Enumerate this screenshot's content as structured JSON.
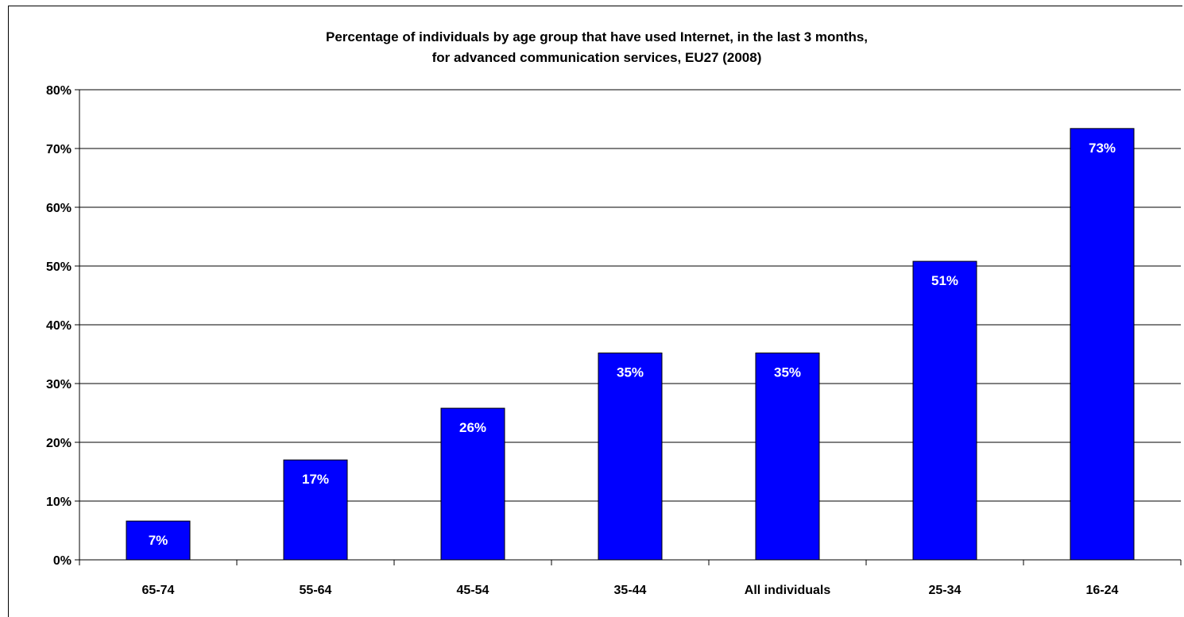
{
  "chart_data": {
    "type": "bar",
    "title": [
      "Percentage of individuals by age group that have used Internet, in the last 3 months,",
      "for advanced communication services, EU27 (2008)"
    ],
    "categories": [
      "65-74",
      "55-64",
      "45-54",
      "35-44",
      "All individuals",
      "25-34",
      "16-24"
    ],
    "values": [
      7,
      17,
      26,
      35,
      35,
      51,
      73
    ],
    "data_labels": [
      "7%",
      "17%",
      "26%",
      "35%",
      "35%",
      "51%",
      "73%"
    ],
    "plotted_values": [
      6.6,
      17.0,
      25.8,
      35.2,
      35.2,
      50.8,
      73.4
    ],
    "yticks": [
      0,
      10,
      20,
      30,
      40,
      50,
      60,
      70,
      80
    ],
    "ytick_labels": [
      "0%",
      "10%",
      "20%",
      "30%",
      "40%",
      "50%",
      "60%",
      "70%",
      "80%"
    ],
    "ylim": [
      0,
      80
    ],
    "xlabel": "",
    "ylabel": "",
    "grid": true,
    "legend": "none",
    "bar_color": "#0000ff",
    "bar_edge_color": "#000000"
  }
}
